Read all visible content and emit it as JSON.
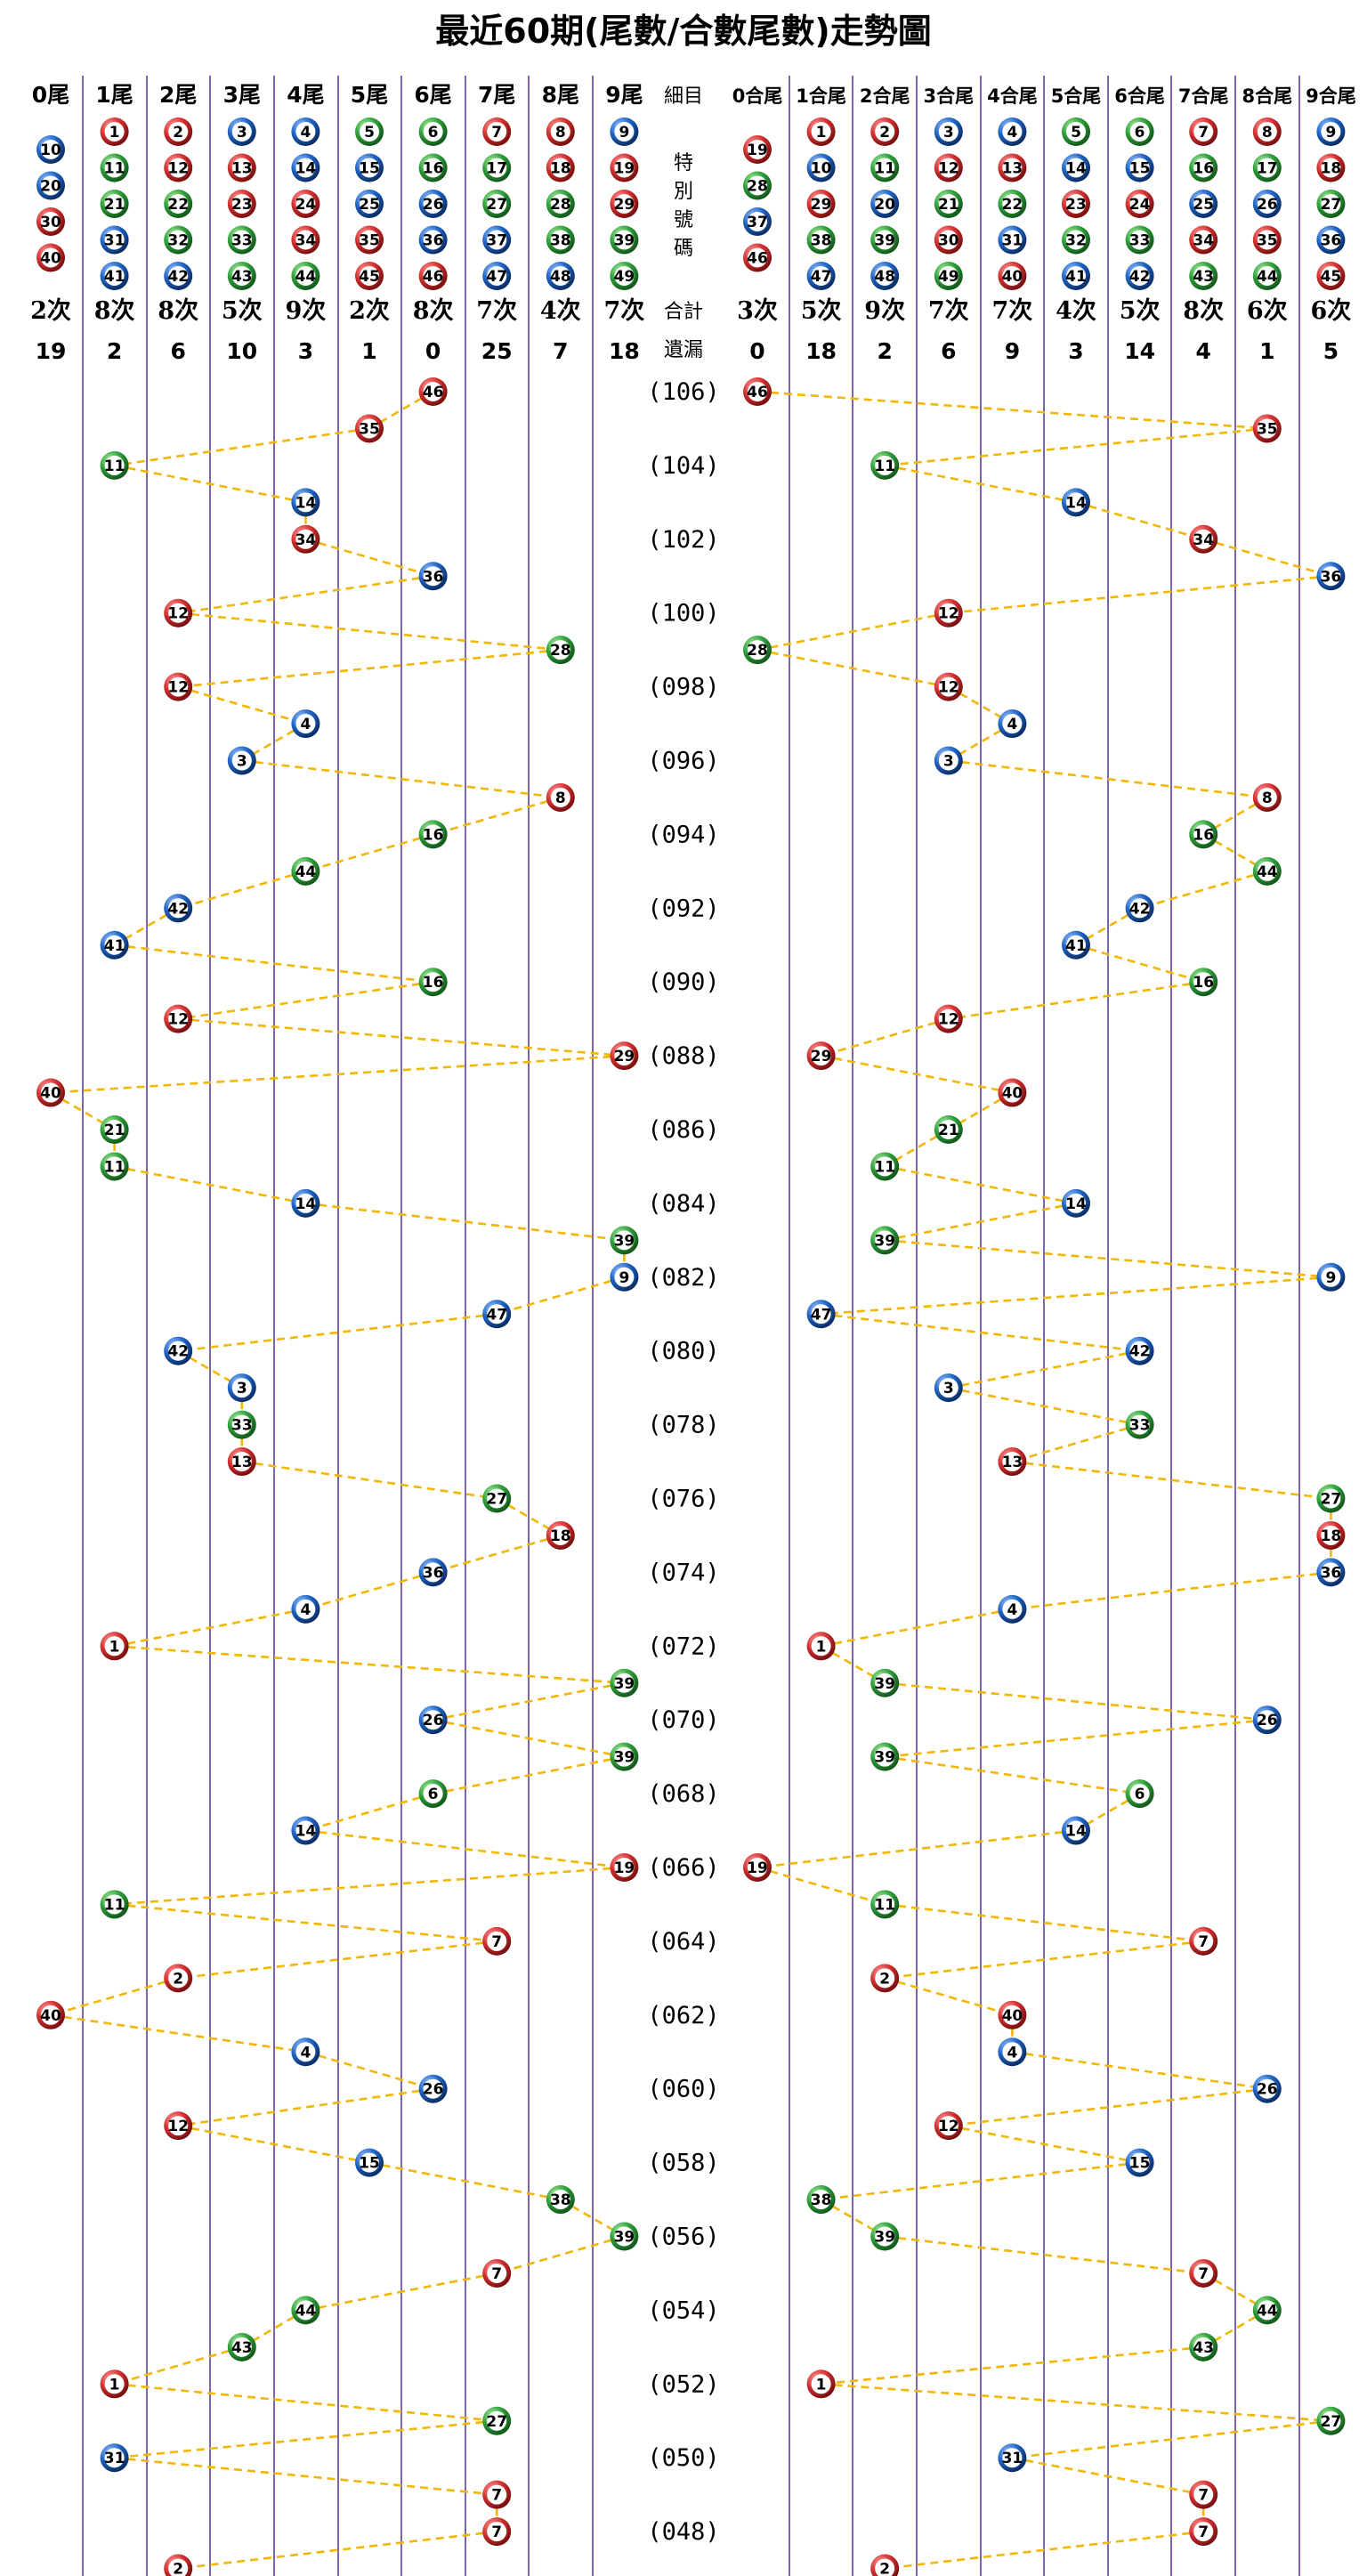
{
  "chart_data": {
    "type": "scatter",
    "title": "最近60期(尾數/合數尾數)走勢圖",
    "middle_header": {
      "detail": "細目",
      "special": [
        "特",
        "別",
        "號",
        "碼"
      ],
      "total": "合計",
      "miss": "遺漏"
    },
    "left_panel": {
      "columns": [
        {
          "label": "0尾",
          "numbers": [
            10,
            20,
            30,
            40
          ],
          "count": "2次",
          "miss": "19"
        },
        {
          "label": "1尾",
          "numbers": [
            1,
            11,
            21,
            31,
            41
          ],
          "count": "8次",
          "miss": "2"
        },
        {
          "label": "2尾",
          "numbers": [
            2,
            12,
            22,
            32,
            42
          ],
          "count": "8次",
          "miss": "6"
        },
        {
          "label": "3尾",
          "numbers": [
            3,
            13,
            23,
            33,
            43
          ],
          "count": "5次",
          "miss": "10"
        },
        {
          "label": "4尾",
          "numbers": [
            4,
            14,
            24,
            34,
            44
          ],
          "count": "9次",
          "miss": "3"
        },
        {
          "label": "5尾",
          "numbers": [
            5,
            15,
            25,
            35,
            45
          ],
          "count": "2次",
          "miss": "1"
        },
        {
          "label": "6尾",
          "numbers": [
            6,
            16,
            26,
            36,
            46
          ],
          "count": "8次",
          "miss": "0"
        },
        {
          "label": "7尾",
          "numbers": [
            7,
            17,
            27,
            37,
            47
          ],
          "count": "7次",
          "miss": "25"
        },
        {
          "label": "8尾",
          "numbers": [
            8,
            18,
            28,
            38,
            48
          ],
          "count": "4次",
          "miss": "7"
        },
        {
          "label": "9尾",
          "numbers": [
            9,
            19,
            29,
            39,
            49
          ],
          "count": "7次",
          "miss": "18"
        }
      ]
    },
    "right_panel": {
      "columns": [
        {
          "label": "0合尾",
          "numbers": [
            19,
            28,
            37,
            46
          ],
          "count": "3次",
          "miss": "0"
        },
        {
          "label": "1合尾",
          "numbers": [
            1,
            10,
            29,
            38,
            47
          ],
          "count": "5次",
          "miss": "18"
        },
        {
          "label": "2合尾",
          "numbers": [
            2,
            11,
            20,
            39,
            48
          ],
          "count": "9次",
          "miss": "2"
        },
        {
          "label": "3合尾",
          "numbers": [
            3,
            12,
            21,
            30,
            49
          ],
          "count": "7次",
          "miss": "6"
        },
        {
          "label": "4合尾",
          "numbers": [
            4,
            13,
            22,
            31,
            40
          ],
          "count": "7次",
          "miss": "9"
        },
        {
          "label": "5合尾",
          "numbers": [
            5,
            14,
            23,
            32,
            41
          ],
          "count": "4次",
          "miss": "3"
        },
        {
          "label": "6合尾",
          "numbers": [
            6,
            15,
            24,
            33,
            42
          ],
          "count": "5次",
          "miss": "14"
        },
        {
          "label": "7合尾",
          "numbers": [
            7,
            16,
            25,
            34,
            43
          ],
          "count": "8次",
          "miss": "4"
        },
        {
          "label": "8合尾",
          "numbers": [
            8,
            17,
            26,
            35,
            44
          ],
          "count": "6次",
          "miss": "1"
        },
        {
          "label": "9合尾",
          "numbers": [
            9,
            18,
            27,
            36,
            45
          ],
          "count": "6次",
          "miss": "5"
        }
      ]
    },
    "draws": [
      46,
      35,
      11,
      14,
      34,
      36,
      12,
      28,
      12,
      4,
      3,
      8,
      16,
      44,
      42,
      41,
      16,
      12,
      29,
      40,
      21,
      11,
      14,
      39,
      9,
      47,
      42,
      3,
      33,
      13,
      27,
      18,
      36,
      4,
      1,
      39,
      26,
      39,
      6,
      14,
      19,
      11,
      7,
      2,
      40,
      4,
      26,
      12,
      15,
      38,
      39,
      7,
      44,
      43,
      1,
      27,
      31,
      7,
      7,
      2
    ],
    "period_labels": [
      "(106)",
      "(104)",
      "(102)",
      "(100)",
      "(098)",
      "(096)",
      "(094)",
      "(092)",
      "(090)",
      "(088)",
      "(086)",
      "(084)",
      "(082)",
      "(080)",
      "(078)",
      "(076)",
      "(074)",
      "(072)",
      "(070)",
      "(068)",
      "(066)",
      "(064)",
      "(062)",
      "(060)",
      "(058)",
      "(056)",
      "(054)",
      "(052)",
      "(050)",
      "(048)"
    ],
    "ball_colors": {
      "red": [
        1,
        2,
        7,
        8,
        12,
        13,
        18,
        19,
        23,
        24,
        29,
        30,
        34,
        35,
        40,
        45,
        46
      ],
      "blue": [
        3,
        4,
        9,
        10,
        14,
        15,
        20,
        25,
        26,
        31,
        36,
        37,
        41,
        42,
        47,
        48
      ],
      "green": [
        5,
        6,
        11,
        16,
        17,
        21,
        22,
        27,
        28,
        32,
        33,
        38,
        39,
        43,
        44,
        49
      ]
    },
    "colors": {
      "red": "#d32f2f",
      "blue": "#1e63c4",
      "green": "#2e9e3a",
      "column_line": "#5b3d9a",
      "trend_line": "#f2b705"
    }
  }
}
